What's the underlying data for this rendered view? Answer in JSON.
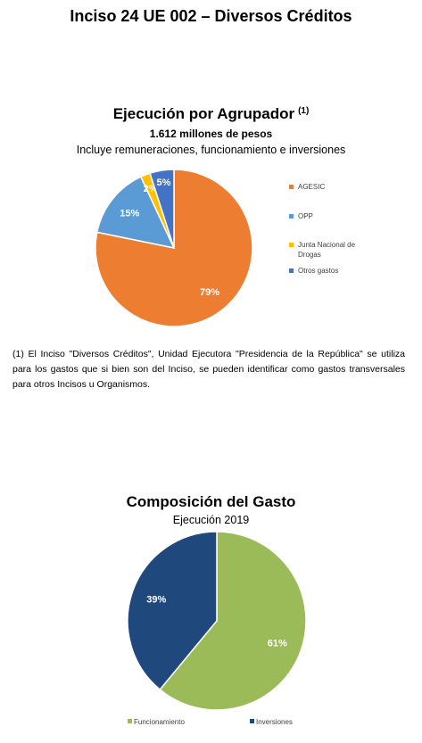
{
  "page_title": "Inciso 24 UE 002 – Diversos Créditos",
  "footnote": "(1) El Inciso \"Diversos Créditos\", Unidad Ejecutora \"Presidencia de la República\" se utiliza para los gastos que si bien son del Inciso, se pueden identificar como gastos transversales para otros Incisos u Organismos.",
  "chart_data": [
    {
      "type": "pie",
      "title": "Ejecución por Agrupador",
      "title_marker": "(1)",
      "subtitle": "1.612 millones de pesos",
      "note": "Incluye remuneraciones,  funcionamiento e inversiones",
      "categories": [
        "AGESIC",
        "OPP",
        "Junta Nacional de Drogas",
        "Otros gastos"
      ],
      "values": [
        79,
        15,
        2,
        5
      ],
      "labels": [
        "79%",
        "15%",
        "2%",
        "5%"
      ],
      "colors": [
        "#ed7d31",
        "#5b9bd5",
        "#ffc000",
        "#4472c4"
      ],
      "legend_position": "right"
    },
    {
      "type": "pie",
      "title": "Composición del Gasto",
      "subtitle": "Ejecución 2019",
      "categories": [
        "Funcionamiento",
        "Inversiones"
      ],
      "values": [
        61,
        39
      ],
      "labels": [
        "61%",
        "39%"
      ],
      "colors": [
        "#9bbb59",
        "#1f497d"
      ],
      "legend_position": "bottom"
    }
  ]
}
